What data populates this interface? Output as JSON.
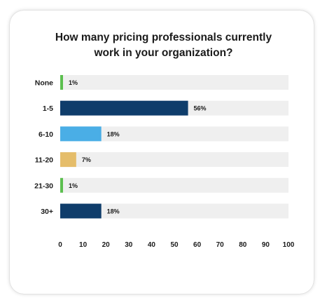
{
  "chart_data": {
    "type": "bar",
    "orientation": "horizontal",
    "title_lines": [
      "How many pricing professionals currently",
      "work in your organization?"
    ],
    "categories": [
      "None",
      "1-5",
      "6-10",
      "11-20",
      "21-30",
      "30+"
    ],
    "values": [
      1,
      56,
      18,
      7,
      1,
      18
    ],
    "value_labels": [
      "1%",
      "56%",
      "18%",
      "7%",
      "1%",
      "18%"
    ],
    "bar_colors": [
      "#5cbf4f",
      "#0f3d6b",
      "#4aaee6",
      "#e5bd6a",
      "#5cbf4f",
      "#0f3d6b"
    ],
    "track_color": "#efefef",
    "xlim": [
      0,
      100
    ],
    "xticks": [
      "0",
      "10",
      "20",
      "30",
      "40",
      "50",
      "60",
      "70",
      "80",
      "90",
      "100"
    ],
    "xlabel": "",
    "ylabel": "",
    "grid": false,
    "legend": "none"
  }
}
